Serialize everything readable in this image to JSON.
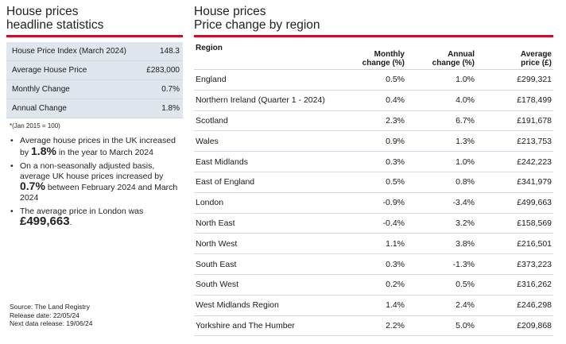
{
  "left": {
    "title_line1": "House prices",
    "title_line2": "headline statistics",
    "stats": [
      {
        "label": "House Price Index (March 2024)",
        "value": "148.3"
      },
      {
        "label": "Average House Price",
        "value": "£283,000"
      },
      {
        "label": "Monthly Change",
        "value": "0.7%"
      },
      {
        "label": "Annual Change",
        "value": "1.8%"
      }
    ],
    "footnote": "*(Jan 2015 = 100)",
    "bullet1": {
      "pre": "Average house prices in the UK increased by ",
      "bold": "1.8%",
      "post": " in the year to March 2024"
    },
    "bullet2": {
      "pre": "On a non-seasonally adjusted basis, average UK house prices increased by ",
      "bold": "0.7%",
      "post": " between February 2024 and March 2024"
    },
    "bullet3": {
      "pre": "The average price in London was ",
      "bold": "£499,663",
      "post": "."
    },
    "source": {
      "line1": "Source: The Land Registry",
      "line2": "Release date: 22/05/24",
      "line3": "Next data release: 19/06/24"
    }
  },
  "right": {
    "title_line1": "House prices",
    "title_line2": "Price change by region",
    "headers": {
      "region": "Region",
      "monthly_1": "Monthly",
      "monthly_2": "change (%)",
      "annual_1": "Annual",
      "annual_2": "change (%)",
      "price_1": "Average",
      "price_2": "price (£)"
    },
    "rows": [
      {
        "region": "England",
        "monthly": "0.5%",
        "annual": "1.0%",
        "price": "£299,321"
      },
      {
        "region": "Northern Ireland (Quarter 1 - 2024)",
        "monthly": "0.4%",
        "annual": "4.0%",
        "price": "£178,499"
      },
      {
        "region": "Scotland",
        "monthly": "2.3%",
        "annual": "6.7%",
        "price": "£191,678"
      },
      {
        "region": "Wales",
        "monthly": "0.9%",
        "annual": "1.3%",
        "price": "£213,753"
      },
      {
        "region": "East Midlands",
        "monthly": "0.3%",
        "annual": "1.0%",
        "price": "£242,223"
      },
      {
        "region": "East of England",
        "monthly": "0.5%",
        "annual": "0.8%",
        "price": "£341,979"
      },
      {
        "region": "London",
        "monthly": "-0.9%",
        "annual": "-3.4%",
        "price": "£499,663"
      },
      {
        "region": "North East",
        "monthly": "-0.4%",
        "annual": "3.2%",
        "price": "£158,569"
      },
      {
        "region": "North West",
        "monthly": "1.1%",
        "annual": "3.8%",
        "price": "£216,501"
      },
      {
        "region": "South East",
        "monthly": "0.3%",
        "annual": "-1.3%",
        "price": "£373,223"
      },
      {
        "region": "South West",
        "monthly": "0.2%",
        "annual": "0.5%",
        "price": "£316,262"
      },
      {
        "region": "West Midlands Region",
        "monthly": "1.4%",
        "annual": "2.4%",
        "price": "£246,298"
      },
      {
        "region": "Yorkshire and The Humber",
        "monthly": "2.2%",
        "annual": "5.0%",
        "price": "£209,868"
      }
    ]
  },
  "colors": {
    "accent_rule": "#c8102e",
    "stat_shade": "#dfe6ee"
  }
}
